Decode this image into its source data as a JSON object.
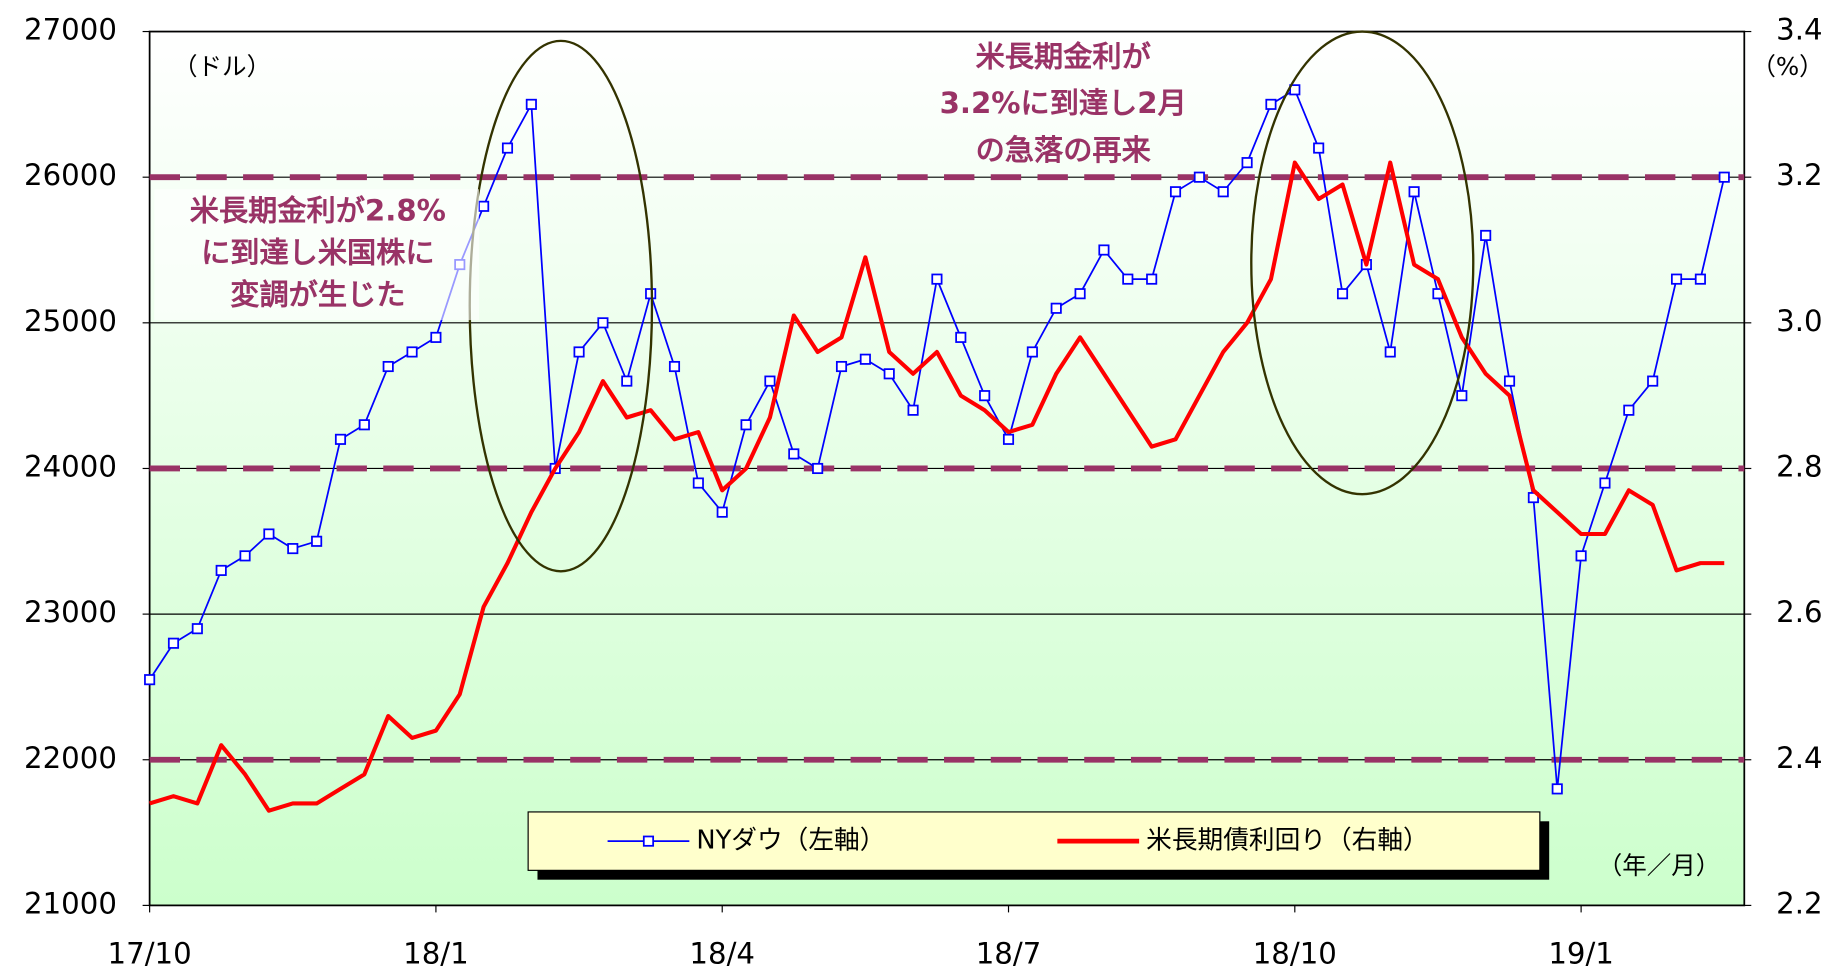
{
  "chart_data": {
    "type": "line",
    "y_unit": "（ドル）",
    "y2_unit": "（%）",
    "x_unit": "（年／月）",
    "annotations": [
      {
        "lines": [
          "米長期金利が2.8%",
          "に到達し米国株に",
          "変調が生じた"
        ]
      },
      {
        "lines": [
          "米長期金利が",
          "3.2%に到達し2月",
          "の急落の再来"
        ]
      }
    ],
    "x": [
      0,
      0.25,
      0.5,
      0.75,
      1,
      1.25,
      1.5,
      1.75,
      2,
      2.25,
      2.5,
      2.75,
      3,
      3.25,
      3.5,
      3.75,
      4,
      4.25,
      4.5,
      4.75,
      5,
      5.25,
      5.5,
      5.75,
      6,
      6.25,
      6.5,
      6.75,
      7,
      7.25,
      7.5,
      7.75,
      8,
      8.25,
      8.5,
      8.75,
      9,
      9.25,
      9.5,
      9.75,
      10,
      10.25,
      10.5,
      10.75,
      11,
      11.25,
      11.5,
      11.75,
      12,
      12.25,
      12.5,
      12.75,
      13,
      13.25,
      13.5,
      13.75,
      14,
      14.25,
      14.5,
      14.75,
      15,
      15.25,
      15.5,
      15.75,
      16,
      16.25,
      16.5
    ],
    "xlim": [
      0,
      16.71
    ],
    "xticks": [
      {
        "value": 0,
        "label": "17/10"
      },
      {
        "value": 3,
        "label": "18/1"
      },
      {
        "value": 6,
        "label": "18/4"
      },
      {
        "value": 9,
        "label": "18/7"
      },
      {
        "value": 12,
        "label": "18/10"
      },
      {
        "value": 15,
        "label": "19/1"
      }
    ],
    "ylim": [
      21000,
      27000
    ],
    "yticks": [
      21000,
      22000,
      23000,
      24000,
      25000,
      26000,
      27000
    ],
    "y2lim": [
      2.2,
      3.4
    ],
    "y2ticks": [
      2.2,
      2.4,
      2.6,
      2.8,
      {
        "value": 3,
        "label": "3.0"
      },
      3.2,
      3.4
    ],
    "grid": true,
    "reference_lines": {
      "values": [
        26000,
        24000,
        22000
      ],
      "color": "#993366"
    },
    "series": [
      {
        "name": "NYダウ（左軸）",
        "color": "#0000ff",
        "marker": "square",
        "values": [
          22550,
          22800,
          22900,
          23300,
          23400,
          23550,
          23450,
          23500,
          24200,
          24300,
          24700,
          24800,
          24900,
          25400,
          25800,
          26200,
          26500,
          24000,
          24800,
          25000,
          24600,
          25200,
          24700,
          23900,
          23700,
          24300,
          24600,
          24100,
          24000,
          24700,
          24750,
          24650,
          24400,
          25300,
          24900,
          24500,
          24200,
          24800,
          25100,
          25200,
          25500,
          25300,
          25300,
          25900,
          26000,
          25900,
          26100,
          26500,
          26600,
          26200,
          25200,
          25400,
          24800,
          25900,
          25200,
          24500,
          25600,
          24600,
          23800,
          21800,
          23400,
          23900,
          24400,
          24600,
          25300,
          25300,
          26000
        ]
      },
      {
        "name": "米長期債利回り（右軸）",
        "color": "#ff0000",
        "axis": "y2",
        "values": [
          2.34,
          2.35,
          2.34,
          2.42,
          2.38,
          2.33,
          2.34,
          2.34,
          2.36,
          2.38,
          2.46,
          2.43,
          2.44,
          2.49,
          2.61,
          2.67,
          2.74,
          2.8,
          2.85,
          2.92,
          2.87,
          2.88,
          2.84,
          2.85,
          2.77,
          2.8,
          2.87,
          3.01,
          2.96,
          2.98,
          3.09,
          2.96,
          2.93,
          2.96,
          2.9,
          2.88,
          2.85,
          2.86,
          2.93,
          2.98,
          2.93,
          2.88,
          2.83,
          2.84,
          2.9,
          2.96,
          3.0,
          3.06,
          3.22,
          3.17,
          3.19,
          3.08,
          3.22,
          3.08,
          3.06,
          2.98,
          2.93,
          2.9,
          2.77,
          2.74,
          2.71,
          2.71,
          2.77,
          2.75,
          2.66,
          2.67,
          2.67
        ]
      }
    ]
  }
}
